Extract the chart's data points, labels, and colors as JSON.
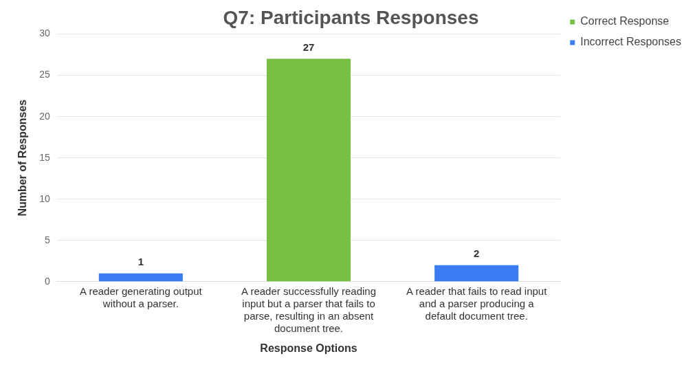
{
  "chart_data": {
    "type": "bar",
    "title": "Q7: Participants Responses",
    "xlabel": "Response Options",
    "ylabel": "Number of Responses",
    "categories": [
      "A reader generating output without a parser.",
      "A reader successfully reading input but a parser that fails to parse, resulting in an absent document tree.",
      "A reader that fails to read input and a parser producing a default document tree."
    ],
    "series": [
      {
        "name": "Correct Response",
        "color": "#76c043",
        "values": [
          null,
          27,
          null
        ]
      },
      {
        "name": "Incorrect Responses",
        "color": "#3a7cf2",
        "values": [
          1,
          null,
          2
        ]
      }
    ],
    "ylim": [
      0,
      30
    ],
    "yticks": [
      0,
      5,
      10,
      15,
      20,
      25,
      30
    ],
    "grid": "y",
    "legend": "top right",
    "data_labels": true
  }
}
